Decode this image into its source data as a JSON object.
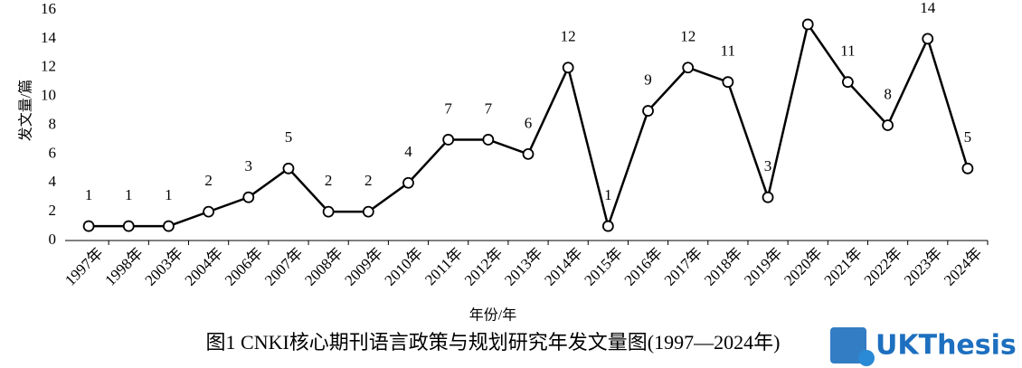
{
  "chart_data": {
    "type": "line",
    "categories": [
      "1997年",
      "1998年",
      "2003年",
      "2004年",
      "2006年",
      "2007年",
      "2008年",
      "2009年",
      "2010年",
      "2011年",
      "2012年",
      "2013年",
      "2014年",
      "2015年",
      "2016年",
      "2017年",
      "2018年",
      "2019年",
      "2020年",
      "2021年",
      "2022年",
      "2023年",
      "2024年"
    ],
    "values": [
      1,
      1,
      1,
      2,
      3,
      5,
      2,
      2,
      4,
      7,
      7,
      6,
      12,
      1,
      9,
      12,
      11,
      3,
      15,
      11,
      8,
      14,
      5
    ],
    "color": "#000000",
    "ylim": [
      0,
      16
    ],
    "yticks": [
      0,
      2,
      4,
      6,
      8,
      10,
      12,
      14,
      16
    ],
    "y_label": "发文量/篇",
    "x_label": "年份/年",
    "caption": "图1 CNKI核心期刊语言政策与规划研究年发文量图(1997—2024年)",
    "watermark": "UKThesis"
  }
}
